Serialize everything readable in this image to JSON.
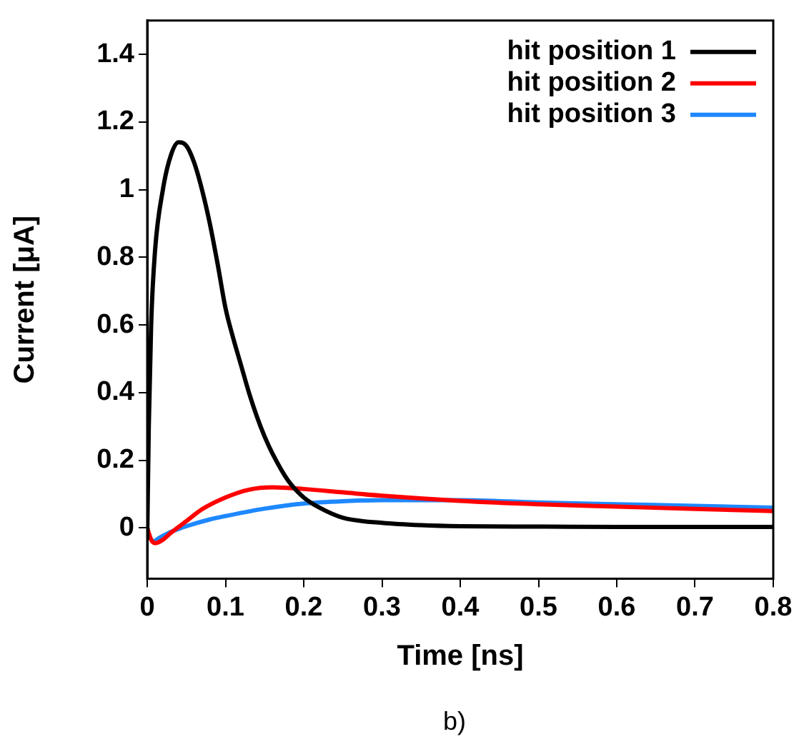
{
  "chart_data": {
    "type": "line",
    "xlabel": "Time [ns]",
    "ylabel": "Current [μA]",
    "annotations": [
      "b)"
    ],
    "xlim": [
      0,
      0.8
    ],
    "xticks": [
      0,
      0.1,
      0.2,
      0.3,
      0.4,
      0.5,
      0.6,
      0.7,
      0.8
    ],
    "ylim": [
      -0.15,
      1.5
    ],
    "yticks": [
      0,
      0.2,
      0.4,
      0.6,
      0.8,
      1,
      1.2,
      1.4
    ],
    "grid": false,
    "legend": "top right",
    "marker": "none",
    "line_style": "solid",
    "series": [
      {
        "name": "hit position 1",
        "color": "#000000",
        "x": [
          0,
          0.002,
          0.005,
          0.01,
          0.02,
          0.03,
          0.04,
          0.05,
          0.06,
          0.07,
          0.08,
          0.09,
          0.1,
          0.11,
          0.12,
          0.13,
          0.14,
          0.15,
          0.16,
          0.18,
          0.2,
          0.22,
          0.25,
          0.3,
          0.35,
          0.4,
          0.5,
          0.6,
          0.7,
          0.8
        ],
        "values": [
          -0.03,
          0.3,
          0.6,
          0.82,
          1.0,
          1.1,
          1.14,
          1.13,
          1.08,
          1.0,
          0.9,
          0.78,
          0.65,
          0.56,
          0.48,
          0.4,
          0.33,
          0.27,
          0.22,
          0.14,
          0.09,
          0.06,
          0.03,
          0.015,
          0.008,
          0.005,
          0.004,
          0.003,
          0.003,
          0.003
        ]
      },
      {
        "name": "hit position 2",
        "color": "#ff0000",
        "x": [
          0,
          0.005,
          0.01,
          0.02,
          0.03,
          0.05,
          0.07,
          0.1,
          0.13,
          0.16,
          0.2,
          0.25,
          0.3,
          0.4,
          0.5,
          0.6,
          0.7,
          0.8
        ],
        "values": [
          0,
          -0.035,
          -0.045,
          -0.035,
          -0.015,
          0.02,
          0.055,
          0.09,
          0.113,
          0.12,
          0.115,
          0.105,
          0.095,
          0.08,
          0.07,
          0.063,
          0.056,
          0.05
        ]
      },
      {
        "name": "hit position 3",
        "color": "#1e88ff",
        "x": [
          0,
          0.004,
          0.008,
          0.015,
          0.03,
          0.05,
          0.08,
          0.1,
          0.15,
          0.2,
          0.25,
          0.3,
          0.35,
          0.4,
          0.5,
          0.6,
          0.7,
          0.8
        ],
        "values": [
          0,
          -0.03,
          -0.04,
          -0.03,
          -0.012,
          0.005,
          0.025,
          0.035,
          0.057,
          0.072,
          0.079,
          0.082,
          0.082,
          0.082,
          0.075,
          0.07,
          0.065,
          0.06
        ]
      }
    ]
  }
}
